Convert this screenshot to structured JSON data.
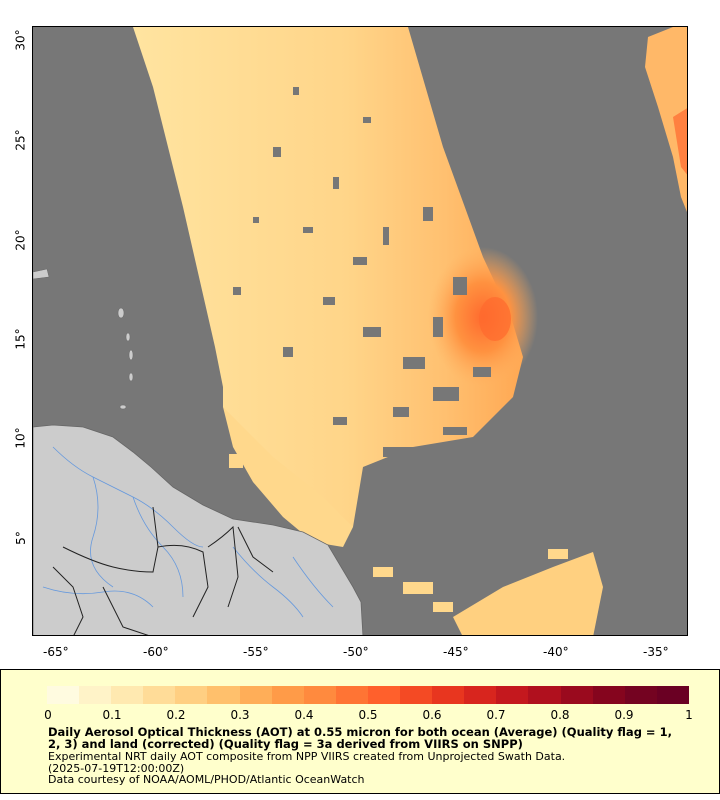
{
  "map": {
    "x_ticks": [
      "-65°",
      "-60°",
      "-55°",
      "-50°",
      "-45°",
      "-40°",
      "-35°"
    ],
    "y_ticks": [
      "30°",
      "25°",
      "20°",
      "15°",
      "10°",
      "5°"
    ],
    "colors": {
      "ocean_nodata": "#777777",
      "land": "#cccccc",
      "rivers": "#6699dd",
      "borders": "#222222"
    }
  },
  "legend": {
    "colorbar_labels": [
      "0",
      "0.1",
      "0.2",
      "0.3",
      "0.4",
      "0.5",
      "0.6",
      "0.7",
      "0.8",
      "0.9",
      "1"
    ],
    "title": "Daily Aerosol Optical Thickness (AOT) at 0.55 micron for both ocean (Average) (Quality flag = 1, 2, 3) and land (corrected) (Quality flag = 3a derived from VIIRS on SNPP)",
    "line1": "Experimental NRT daily AOT composite from NPP VIIRS created from Unprojected Swath Data.",
    "line2": "(2025-07-19T12:00:00Z)",
    "line3": "Data courtesy of NOAA/AOML/PHOD/Atlantic OceanWatch",
    "colors": [
      "#fffbe0",
      "#fff3c8",
      "#ffe9b0",
      "#ffdc98",
      "#ffcf82",
      "#ffc06c",
      "#ffae58",
      "#ff9b48",
      "#ff8a3e",
      "#ff7434",
      "#ff602c",
      "#f44a24",
      "#e8361f",
      "#d8251e",
      "#c4181e",
      "#b0101e",
      "#9a0a1e",
      "#85051e",
      "#740321",
      "#6a0023"
    ]
  }
}
